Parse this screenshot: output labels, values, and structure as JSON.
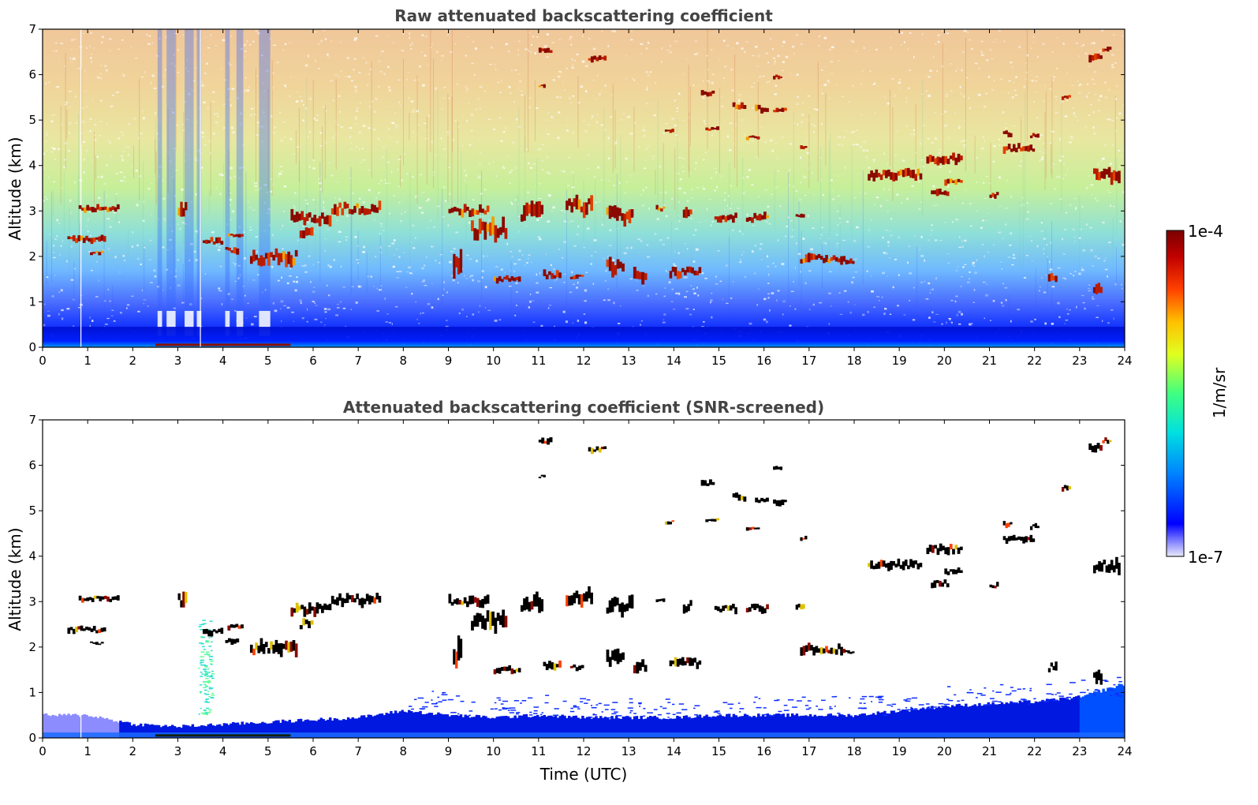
{
  "chart_data": [
    {
      "type": "heatmap",
      "title": "Raw attenuated backscattering coefficient",
      "xlabel": "",
      "ylabel": "Altitude (km)",
      "xlim": [
        0,
        24
      ],
      "ylim": [
        0,
        7
      ],
      "xticks": [
        "0",
        "1",
        "2",
        "3",
        "4",
        "5",
        "6",
        "7",
        "8",
        "9",
        "10",
        "11",
        "12",
        "13",
        "14",
        "15",
        "16",
        "17",
        "18",
        "19",
        "20",
        "21",
        "22",
        "23",
        "24"
      ],
      "yticks": [
        "0",
        "1",
        "2",
        "3",
        "4",
        "5",
        "6",
        "7"
      ],
      "background_profile": "noisy signal: blue near surface (0-1 km), cyan/green 1-3 km, yellow/orange/red above 3 km; dropouts (white) 2.5-5 UTC",
      "cloud_layers": [
        {
          "t0": 0.5,
          "t1": 1.5,
          "alt": 2.4,
          "thick": 0.12
        },
        {
          "t0": 0.8,
          "t1": 1.7,
          "alt": 3.05,
          "thick": 0.1
        },
        {
          "t0": 5.5,
          "t1": 7.5,
          "alt": 2.9,
          "thick": 0.25
        },
        {
          "t0": 9.0,
          "t1": 10.0,
          "alt": 3.0,
          "thick": 0.15
        },
        {
          "t0": 18.4,
          "t1": 19.5,
          "alt": 3.8,
          "thick": 0.15
        },
        {
          "t0": 19.6,
          "t1": 20.4,
          "alt": 4.15,
          "thick": 0.15
        },
        {
          "t0": 21.2,
          "t1": 22.0,
          "alt": 4.4,
          "thick": 0.12
        },
        {
          "t0": 16.6,
          "t1": 17.8,
          "alt": 1.95,
          "thick": 0.15
        }
      ]
    },
    {
      "type": "heatmap",
      "title": "Attenuated backscattering coefficient (SNR-screened)",
      "xlabel": "Time (UTC)",
      "ylabel": "Altitude (km)",
      "xlim": [
        0,
        24
      ],
      "ylim": [
        0,
        7
      ],
      "xticks": [
        "0",
        "1",
        "2",
        "3",
        "4",
        "5",
        "6",
        "7",
        "8",
        "9",
        "10",
        "11",
        "12",
        "13",
        "14",
        "15",
        "16",
        "17",
        "18",
        "19",
        "20",
        "21",
        "22",
        "23",
        "24"
      ],
      "yticks": [
        "0",
        "1",
        "2",
        "3",
        "4",
        "5",
        "6",
        "7"
      ],
      "boundary_layer_top_km": [
        0.5,
        0.5,
        0.3,
        0.25,
        0.3,
        0.35,
        0.4,
        0.45,
        0.6,
        0.5,
        0.45,
        0.5,
        0.45,
        0.45,
        0.45,
        0.5,
        0.5,
        0.5,
        0.5,
        0.6,
        0.7,
        0.75,
        0.8,
        0.9,
        1.2
      ],
      "cloud_layers_color": "black"
    }
  ],
  "colorbar": {
    "label": "1/m/sr",
    "max_label": "1e-4",
    "min_label": "1e-7",
    "scale": "log",
    "colormap": [
      "#e8e8f8",
      "#0000ff",
      "#0080ff",
      "#00e0e0",
      "#40ff80",
      "#e0ff20",
      "#ffc000",
      "#ff4000",
      "#c00000",
      "#7a0000"
    ]
  }
}
